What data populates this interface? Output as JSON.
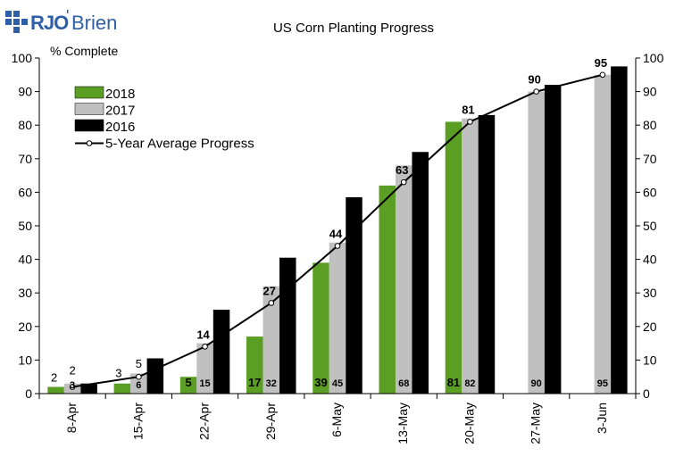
{
  "brand": {
    "name_left": "RJO",
    "name_right": "Brien",
    "apostrophe": "'"
  },
  "chart_data": {
    "type": "bar",
    "title": "US Corn Planting Progress",
    "ylabel": "% Complete",
    "xlabel": "",
    "ylim": [
      0,
      100
    ],
    "yticks": [
      0,
      10,
      20,
      30,
      40,
      50,
      60,
      70,
      80,
      90,
      100
    ],
    "grid": false,
    "legend_position": "top-left",
    "categories": [
      "8-Apr",
      "15-Apr",
      "22-Apr",
      "29-Apr",
      "6-May",
      "13-May",
      "20-May",
      "27-May",
      "3-Jun"
    ],
    "series": [
      {
        "name": "2018",
        "kind": "bar",
        "color": "#5b9e24",
        "values": [
          2,
          3,
          5,
          17,
          39,
          62,
          81,
          null,
          null
        ],
        "labels": [
          "2",
          "3",
          "5",
          "17",
          "39",
          "",
          "81",
          "",
          ""
        ]
      },
      {
        "name": "2017",
        "kind": "bar",
        "color": "#c0c0c0",
        "values": [
          3,
          6,
          15,
          32,
          45,
          68,
          82,
          90,
          95
        ],
        "labels": [
          "3",
          "6",
          "15",
          "32",
          "45",
          "68",
          "82",
          "90",
          "95"
        ]
      },
      {
        "name": "2016",
        "kind": "bar",
        "color": "#000000",
        "values": [
          3,
          10.5,
          25,
          40.5,
          58.5,
          72,
          83,
          92,
          97.5
        ],
        "labels": [
          "",
          "",
          "",
          "",
          "",
          "",
          "",
          "",
          ""
        ]
      },
      {
        "name": "5-Year Average Progress",
        "kind": "line",
        "color": "#000000",
        "values": [
          2,
          5,
          14,
          27,
          44,
          63,
          81,
          90,
          95
        ],
        "labels": [
          "2",
          "5",
          "14",
          "27",
          "44",
          "63",
          "81",
          "90",
          "95"
        ]
      }
    ]
  }
}
